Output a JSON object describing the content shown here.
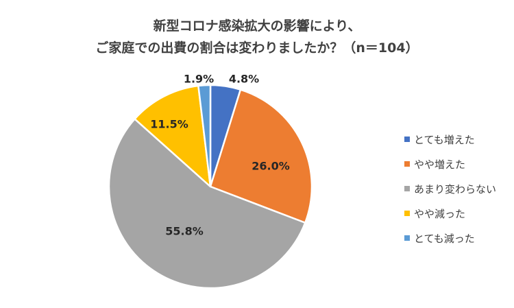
{
  "chart_data": {
    "type": "pie",
    "title": "新型コロナ感染拡大の影響により、",
    "subtitle": "ご家庭での出費の割合は変わりましたか？（n＝104）",
    "slices": [
      {
        "label": "とても増えた",
        "value": 4.8,
        "display": "4.8%",
        "color": "#4472C4"
      },
      {
        "label": "やや増えた",
        "value": 26.0,
        "display": "26.0%",
        "color": "#ED7D31"
      },
      {
        "label": "あまり変わらない",
        "value": 55.8,
        "display": "55.8%",
        "color": "#A5A5A5"
      },
      {
        "label": "やや減った",
        "value": 11.5,
        "display": "11.5%",
        "color": "#FFC000"
      },
      {
        "label": "とても減った",
        "value": 1.9,
        "display": "1.9%",
        "color": "#5B9BD5"
      }
    ],
    "legend_position": "right"
  }
}
